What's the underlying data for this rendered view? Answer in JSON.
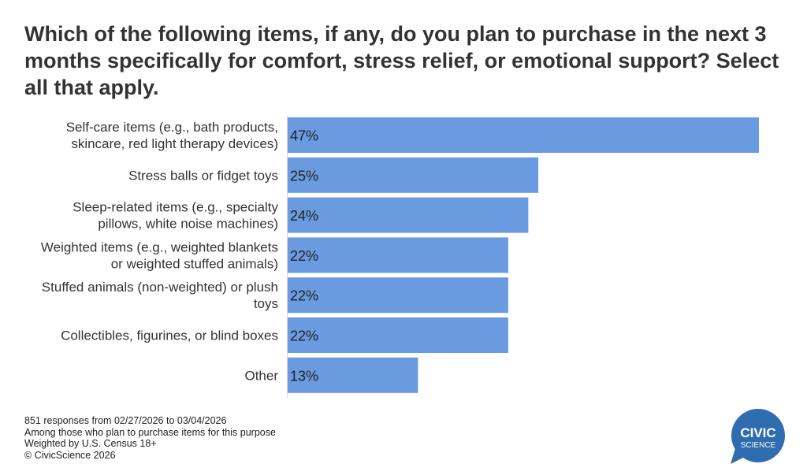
{
  "title": "Which of the following items, if any, do you plan to purchase in the next 3 months specifically for comfort, stress relief, or emotional support? Select all that apply.",
  "chart_data": {
    "type": "bar",
    "orientation": "horizontal",
    "categories": [
      [
        "Self-care items (e.g., bath products,",
        "skincare, red light therapy devices)"
      ],
      [
        "Stress balls or fidget toys"
      ],
      [
        "Sleep-related items (e.g., specialty",
        "pillows, white noise machines)"
      ],
      [
        "Weighted items (e.g., weighted blankets",
        "or weighted stuffed animals)"
      ],
      [
        "Stuffed animals (non-weighted) or plush",
        "toys"
      ],
      [
        "Collectibles, figurines, or blind boxes"
      ],
      [
        "Other"
      ]
    ],
    "values": [
      47,
      25,
      24,
      22,
      22,
      22,
      13
    ],
    "value_labels": [
      "47%",
      "25%",
      "24%",
      "22%",
      "22%",
      "22%",
      "13%"
    ],
    "unit": "%",
    "xlim": [
      0,
      47
    ],
    "grid": false,
    "bar_color": "#6a9be0"
  },
  "footer": {
    "lines": [
      "851 responses from 02/27/2026 to 03/04/2026",
      "Among those who plan to purchase items for this purpose",
      "Weighted by U.S. Census 18+",
      "© CivicScience 2026"
    ]
  },
  "logo": {
    "line1": "CIVIC",
    "line2": "SCIENCE",
    "color": "#2f6db0"
  }
}
